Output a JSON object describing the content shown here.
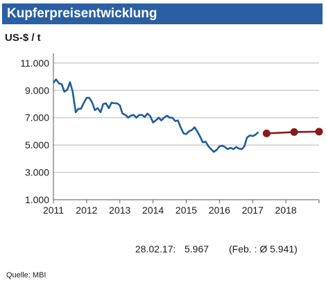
{
  "title": "Kupferpreisentwicklung",
  "unit": "US-$ / t",
  "annotation_date": "28.02.17:",
  "annotation_value": "5.967",
  "annotation_avg": "(Feb. : Ø  5.941)",
  "source": "Quelle: MBI",
  "colors": {
    "title_bg": "#2b5fa3",
    "actual": "#1f5c99",
    "forecast": "#8b1a1a"
  },
  "chart_data": {
    "type": "line",
    "title": "Kupferpreisentwicklung",
    "ylabel": "US-$ / t",
    "xlabel": "",
    "ylim": [
      1000,
      11500
    ],
    "xlim": [
      2011.0,
      2019.0
    ],
    "yticks": [
      1000,
      3000,
      5000,
      7000,
      9000,
      11000
    ],
    "ytick_labels": [
      "1.000",
      "3.000",
      "5.000",
      "7.000",
      "9.000",
      "11.000"
    ],
    "xticks": [
      2011,
      2012,
      2013,
      2014,
      2015,
      2016,
      2017,
      2018
    ],
    "xtick_labels": [
      "2011",
      "2012",
      "2013",
      "2014",
      "2015",
      "2016",
      "2017",
      "2018"
    ],
    "grid": "horizontal",
    "series": [
      {
        "x": [
          2011.0,
          2011.08,
          2011.17,
          2011.25,
          2011.33,
          2011.42,
          2011.5,
          2011.58,
          2011.67,
          2011.75,
          2011.83,
          2011.92,
          2012.0,
          2012.08,
          2012.17,
          2012.25,
          2012.33,
          2012.42,
          2012.5,
          2012.58,
          2012.67,
          2012.75,
          2012.83,
          2012.92,
          2013.0,
          2013.08,
          2013.17,
          2013.25,
          2013.33,
          2013.42,
          2013.5,
          2013.58,
          2013.67,
          2013.75,
          2013.83,
          2013.92,
          2014.0,
          2014.08,
          2014.17,
          2014.25,
          2014.33,
          2014.42,
          2014.5,
          2014.58,
          2014.67,
          2014.75,
          2014.83,
          2014.92,
          2015.0,
          2015.08,
          2015.17,
          2015.25,
          2015.33,
          2015.42,
          2015.5,
          2015.58,
          2015.67,
          2015.75,
          2015.83,
          2015.92,
          2016.0,
          2016.08,
          2016.17,
          2016.25,
          2016.33,
          2016.42,
          2016.5,
          2016.58,
          2016.67,
          2016.75,
          2016.83,
          2016.92,
          2017.0,
          2017.08,
          2017.17
        ],
        "values": [
          9550,
          9800,
          9500,
          9450,
          8900,
          9050,
          9600,
          8900,
          7400,
          7650,
          7650,
          8100,
          8450,
          8450,
          8100,
          7550,
          7700,
          7400,
          8000,
          8050,
          7700,
          8100,
          8050,
          8050,
          7900,
          7300,
          7200,
          7000,
          7150,
          7200,
          7000,
          7200,
          7200,
          7050,
          7300,
          7100,
          6650,
          6800,
          7000,
          6800,
          7000,
          7150,
          7000,
          7000,
          6750,
          6800,
          6300,
          5850,
          5800,
          6000,
          6100,
          6300,
          6000,
          5600,
          5200,
          5250,
          4900,
          4700,
          4500,
          4650,
          4900,
          4950,
          4850,
          4700,
          4800,
          4700,
          4850,
          4750,
          4700,
          4900,
          5550,
          5700,
          5650,
          5750,
          5950
        ]
      },
      {
        "x": [
          2017.42,
          2018.25,
          2019.0
        ],
        "values": [
          5850,
          5950,
          5980
        ]
      }
    ]
  }
}
